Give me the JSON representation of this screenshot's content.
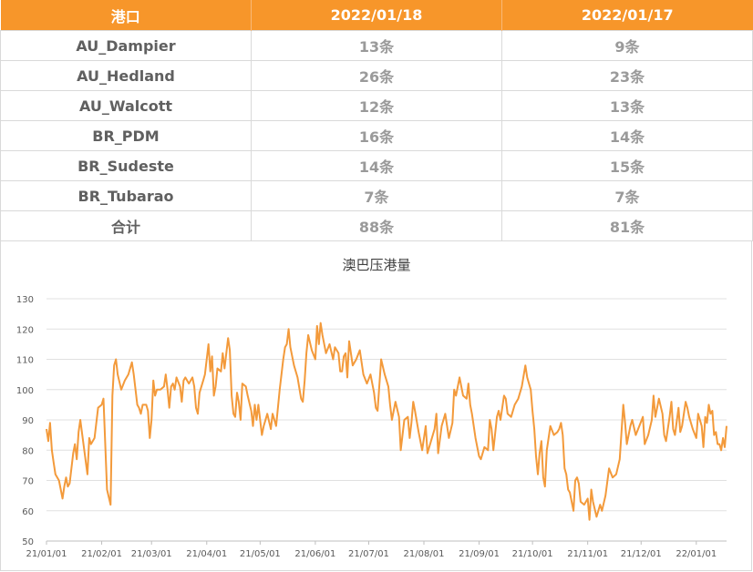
{
  "table": {
    "headers": [
      "港口",
      "2022/01/18",
      "2022/01/17"
    ],
    "rows": [
      [
        "AU_Dampier",
        "13条",
        "9条"
      ],
      [
        "AU_Hedland",
        "26条",
        "23条"
      ],
      [
        "AU_Walcott",
        "12条",
        "13条"
      ],
      [
        "BR_PDM",
        "16条",
        "14条"
      ],
      [
        "BR_Sudeste",
        "14条",
        "15条"
      ],
      [
        "BR_Tubarao",
        "7条",
        "7条"
      ],
      [
        "合计",
        "88条",
        "81条"
      ]
    ]
  },
  "colors": {
    "header_bg": "#f7962a",
    "line": "#f39a3b",
    "grid": "#e0e0e0"
  },
  "chart_data": {
    "type": "line",
    "title": "澳巴压港量",
    "xlabel": "",
    "ylabel": "",
    "ylim": [
      50,
      130
    ],
    "y_ticks": [
      50,
      60,
      70,
      80,
      90,
      100,
      110,
      120,
      130
    ],
    "x_ticks": [
      "21/01/01",
      "21/02/01",
      "21/03/01",
      "21/04/01",
      "21/05/01",
      "21/06/01",
      "21/07/01",
      "21/08/01",
      "21/09/01",
      "21/10/01",
      "21/11/01",
      "21/12/01",
      "22/01/01"
    ],
    "x_range": [
      "2021-01-01",
      "2022-01-18"
    ],
    "grid": "horizontal",
    "legend": "none",
    "series": [
      {
        "points": [
          [
            "2021-01-01",
            87
          ],
          [
            "2021-01-02",
            83
          ],
          [
            "2021-01-03",
            89
          ],
          [
            "2021-01-04",
            80
          ],
          [
            "2021-01-05",
            76
          ],
          [
            "2021-01-06",
            72
          ],
          [
            "2021-01-08",
            70
          ],
          [
            "2021-01-10",
            64
          ],
          [
            "2021-01-11",
            68
          ],
          [
            "2021-01-12",
            71
          ],
          [
            "2021-01-13",
            68
          ],
          [
            "2021-01-14",
            69
          ],
          [
            "2021-01-16",
            79
          ],
          [
            "2021-01-17",
            82
          ],
          [
            "2021-01-18",
            77
          ],
          [
            "2021-01-19",
            86
          ],
          [
            "2021-01-20",
            90
          ],
          [
            "2021-01-22",
            81
          ],
          [
            "2021-01-24",
            72
          ],
          [
            "2021-01-25",
            84
          ],
          [
            "2021-01-26",
            82
          ],
          [
            "2021-01-28",
            84
          ],
          [
            "2021-01-30",
            94
          ],
          [
            "2021-02-01",
            95
          ],
          [
            "2021-02-02",
            97
          ],
          [
            "2021-02-04",
            67
          ],
          [
            "2021-02-06",
            62
          ],
          [
            "2021-02-07",
            98
          ],
          [
            "2021-02-08",
            108
          ],
          [
            "2021-02-09",
            110
          ],
          [
            "2021-02-10",
            105
          ],
          [
            "2021-02-12",
            100
          ],
          [
            "2021-02-14",
            103
          ],
          [
            "2021-02-16",
            105
          ],
          [
            "2021-02-18",
            109
          ],
          [
            "2021-02-19",
            105
          ],
          [
            "2021-02-21",
            95
          ],
          [
            "2021-02-22",
            94
          ],
          [
            "2021-02-23",
            92
          ],
          [
            "2021-02-24",
            95
          ],
          [
            "2021-02-26",
            95
          ],
          [
            "2021-02-27",
            93
          ],
          [
            "2021-02-28",
            84
          ],
          [
            "2021-03-01",
            90
          ],
          [
            "2021-03-02",
            103
          ],
          [
            "2021-03-03",
            98
          ],
          [
            "2021-03-04",
            100
          ],
          [
            "2021-03-06",
            100
          ],
          [
            "2021-03-08",
            101
          ],
          [
            "2021-03-09",
            105
          ],
          [
            "2021-03-10",
            100
          ],
          [
            "2021-03-11",
            94
          ],
          [
            "2021-03-12",
            101
          ],
          [
            "2021-03-13",
            102
          ],
          [
            "2021-03-14",
            100
          ],
          [
            "2021-03-15",
            104
          ],
          [
            "2021-03-17",
            101
          ],
          [
            "2021-03-18",
            96
          ],
          [
            "2021-03-19",
            103
          ],
          [
            "2021-03-20",
            104
          ],
          [
            "2021-03-22",
            102
          ],
          [
            "2021-03-24",
            104
          ],
          [
            "2021-03-25",
            101
          ],
          [
            "2021-03-26",
            94
          ],
          [
            "2021-03-27",
            92
          ],
          [
            "2021-03-28",
            99
          ],
          [
            "2021-03-30",
            103
          ],
          [
            "2021-03-31",
            105
          ],
          [
            "2021-04-02",
            115
          ],
          [
            "2021-04-03",
            106
          ],
          [
            "2021-04-04",
            111
          ],
          [
            "2021-04-05",
            98
          ],
          [
            "2021-04-06",
            101
          ],
          [
            "2021-04-07",
            107
          ],
          [
            "2021-04-09",
            106
          ],
          [
            "2021-04-10",
            112
          ],
          [
            "2021-04-11",
            107
          ],
          [
            "2021-04-13",
            117
          ],
          [
            "2021-04-14",
            113
          ],
          [
            "2021-04-15",
            98
          ],
          [
            "2021-04-16",
            92
          ],
          [
            "2021-04-17",
            91
          ],
          [
            "2021-04-18",
            99
          ],
          [
            "2021-04-19",
            96
          ],
          [
            "2021-04-20",
            90
          ],
          [
            "2021-04-21",
            102
          ],
          [
            "2021-04-23",
            101
          ],
          [
            "2021-04-24",
            98
          ],
          [
            "2021-04-26",
            93
          ],
          [
            "2021-04-27",
            88
          ],
          [
            "2021-04-28",
            95
          ],
          [
            "2021-04-29",
            90
          ],
          [
            "2021-04-30",
            95
          ],
          [
            "2021-05-02",
            85
          ],
          [
            "2021-05-03",
            88
          ],
          [
            "2021-05-05",
            92
          ],
          [
            "2021-05-07",
            87
          ],
          [
            "2021-05-08",
            92
          ],
          [
            "2021-05-09",
            90
          ],
          [
            "2021-05-10",
            88
          ],
          [
            "2021-05-12",
            100
          ],
          [
            "2021-05-14",
            110
          ],
          [
            "2021-05-15",
            114
          ],
          [
            "2021-05-16",
            115
          ],
          [
            "2021-05-17",
            120
          ],
          [
            "2021-05-18",
            114
          ],
          [
            "2021-05-20",
            108
          ],
          [
            "2021-05-22",
            104
          ],
          [
            "2021-05-24",
            97
          ],
          [
            "2021-05-25",
            96
          ],
          [
            "2021-05-26",
            103
          ],
          [
            "2021-05-27",
            112
          ],
          [
            "2021-05-28",
            118
          ],
          [
            "2021-05-30",
            113
          ],
          [
            "2021-06-01",
            110
          ],
          [
            "2021-06-02",
            121
          ],
          [
            "2021-06-03",
            115
          ],
          [
            "2021-06-04",
            122
          ],
          [
            "2021-06-05",
            118
          ],
          [
            "2021-06-07",
            112
          ],
          [
            "2021-06-09",
            115
          ],
          [
            "2021-06-11",
            110
          ],
          [
            "2021-06-12",
            114
          ],
          [
            "2021-06-14",
            112
          ],
          [
            "2021-06-15",
            106
          ],
          [
            "2021-06-16",
            106
          ],
          [
            "2021-06-17",
            111
          ],
          [
            "2021-06-18",
            112
          ],
          [
            "2021-06-19",
            104
          ],
          [
            "2021-06-20",
            116
          ],
          [
            "2021-06-22",
            108
          ],
          [
            "2021-06-24",
            110
          ],
          [
            "2021-06-26",
            113
          ],
          [
            "2021-06-28",
            105
          ],
          [
            "2021-06-30",
            102
          ],
          [
            "2021-07-02",
            105
          ],
          [
            "2021-07-04",
            99
          ],
          [
            "2021-07-05",
            94
          ],
          [
            "2021-07-06",
            93
          ],
          [
            "2021-07-08",
            110
          ],
          [
            "2021-07-10",
            105
          ],
          [
            "2021-07-12",
            101
          ],
          [
            "2021-07-13",
            95
          ],
          [
            "2021-07-14",
            90
          ],
          [
            "2021-07-16",
            96
          ],
          [
            "2021-07-18",
            91
          ],
          [
            "2021-07-19",
            80
          ],
          [
            "2021-07-21",
            90
          ],
          [
            "2021-07-23",
            91
          ],
          [
            "2021-07-24",
            84
          ],
          [
            "2021-07-25",
            89
          ],
          [
            "2021-07-26",
            96
          ],
          [
            "2021-07-27",
            93
          ],
          [
            "2021-07-29",
            86
          ],
          [
            "2021-07-31",
            80
          ],
          [
            "2021-08-02",
            88
          ],
          [
            "2021-08-03",
            79
          ],
          [
            "2021-08-05",
            83
          ],
          [
            "2021-08-07",
            87
          ],
          [
            "2021-08-08",
            92
          ],
          [
            "2021-08-09",
            79
          ],
          [
            "2021-08-11",
            88
          ],
          [
            "2021-08-13",
            92
          ],
          [
            "2021-08-15",
            84
          ],
          [
            "2021-08-17",
            89
          ],
          [
            "2021-08-18",
            100
          ],
          [
            "2021-08-19",
            98
          ],
          [
            "2021-08-21",
            104
          ],
          [
            "2021-08-23",
            98
          ],
          [
            "2021-08-25",
            97
          ],
          [
            "2021-08-26",
            102
          ],
          [
            "2021-08-27",
            95
          ],
          [
            "2021-08-28",
            92
          ],
          [
            "2021-08-30",
            84
          ],
          [
            "2021-09-01",
            78
          ],
          [
            "2021-09-02",
            77
          ],
          [
            "2021-09-04",
            81
          ],
          [
            "2021-09-06",
            80
          ],
          [
            "2021-09-07",
            90
          ],
          [
            "2021-09-08",
            87
          ],
          [
            "2021-09-09",
            80
          ],
          [
            "2021-09-11",
            91
          ],
          [
            "2021-09-12",
            93
          ],
          [
            "2021-09-13",
            90
          ],
          [
            "2021-09-15",
            98
          ],
          [
            "2021-09-16",
            97
          ],
          [
            "2021-09-17",
            92
          ],
          [
            "2021-09-19",
            91
          ],
          [
            "2021-09-21",
            95
          ],
          [
            "2021-09-23",
            97
          ],
          [
            "2021-09-25",
            101
          ],
          [
            "2021-09-27",
            108
          ],
          [
            "2021-09-28",
            104
          ],
          [
            "2021-09-30",
            100
          ],
          [
            "2021-10-01",
            93
          ],
          [
            "2021-10-02",
            87
          ],
          [
            "2021-10-03",
            78
          ],
          [
            "2021-10-04",
            72
          ],
          [
            "2021-10-05",
            79
          ],
          [
            "2021-10-06",
            83
          ],
          [
            "2021-10-07",
            71
          ],
          [
            "2021-10-08",
            68
          ],
          [
            "2021-10-09",
            80
          ],
          [
            "2021-10-11",
            88
          ],
          [
            "2021-10-13",
            85
          ],
          [
            "2021-10-15",
            86
          ],
          [
            "2021-10-16",
            87
          ],
          [
            "2021-10-17",
            89
          ],
          [
            "2021-10-18",
            85
          ],
          [
            "2021-10-19",
            74
          ],
          [
            "2021-10-20",
            72
          ],
          [
            "2021-10-21",
            67
          ],
          [
            "2021-10-22",
            66
          ],
          [
            "2021-10-24",
            60
          ],
          [
            "2021-10-25",
            70
          ],
          [
            "2021-10-26",
            71
          ],
          [
            "2021-10-27",
            69
          ],
          [
            "2021-10-28",
            63
          ],
          [
            "2021-10-30",
            62
          ],
          [
            "2021-11-01",
            64
          ],
          [
            "2021-11-02",
            57
          ],
          [
            "2021-11-03",
            67
          ],
          [
            "2021-11-04",
            63
          ],
          [
            "2021-11-06",
            58
          ],
          [
            "2021-11-08",
            62
          ],
          [
            "2021-11-09",
            60
          ],
          [
            "2021-11-11",
            65
          ],
          [
            "2021-11-13",
            74
          ],
          [
            "2021-11-15",
            71
          ],
          [
            "2021-11-17",
            72
          ],
          [
            "2021-11-19",
            77
          ],
          [
            "2021-11-21",
            95
          ],
          [
            "2021-11-22",
            89
          ],
          [
            "2021-11-23",
            82
          ],
          [
            "2021-11-25",
            88
          ],
          [
            "2021-11-26",
            90
          ],
          [
            "2021-11-28",
            85
          ],
          [
            "2021-11-30",
            88
          ],
          [
            "2021-12-02",
            91
          ],
          [
            "2021-12-03",
            82
          ],
          [
            "2021-12-05",
            85
          ],
          [
            "2021-12-07",
            90
          ],
          [
            "2021-12-08",
            98
          ],
          [
            "2021-12-09",
            91
          ],
          [
            "2021-12-11",
            97
          ],
          [
            "2021-12-13",
            92
          ],
          [
            "2021-12-14",
            85
          ],
          [
            "2021-12-15",
            83
          ],
          [
            "2021-12-17",
            91
          ],
          [
            "2021-12-18",
            96
          ],
          [
            "2021-12-19",
            87
          ],
          [
            "2021-12-20",
            85
          ],
          [
            "2021-12-22",
            94
          ],
          [
            "2021-12-23",
            86
          ],
          [
            "2021-12-24",
            88
          ],
          [
            "2021-12-26",
            96
          ],
          [
            "2021-12-27",
            94
          ],
          [
            "2021-12-28",
            91
          ],
          [
            "2021-12-30",
            87
          ],
          [
            "2022-01-01",
            84
          ],
          [
            "2022-01-02",
            92
          ],
          [
            "2022-01-04",
            88
          ],
          [
            "2022-01-05",
            81
          ],
          [
            "2022-01-06",
            91
          ],
          [
            "2022-01-07",
            89
          ],
          [
            "2022-01-08",
            95
          ],
          [
            "2022-01-09",
            92
          ],
          [
            "2022-01-10",
            93
          ],
          [
            "2022-01-11",
            85
          ],
          [
            "2022-01-12",
            86
          ],
          [
            "2022-01-13",
            82
          ],
          [
            "2022-01-14",
            82
          ],
          [
            "2022-01-15",
            80
          ],
          [
            "2022-01-16",
            84
          ],
          [
            "2022-01-17",
            81
          ],
          [
            "2022-01-18",
            88
          ]
        ]
      }
    ]
  }
}
